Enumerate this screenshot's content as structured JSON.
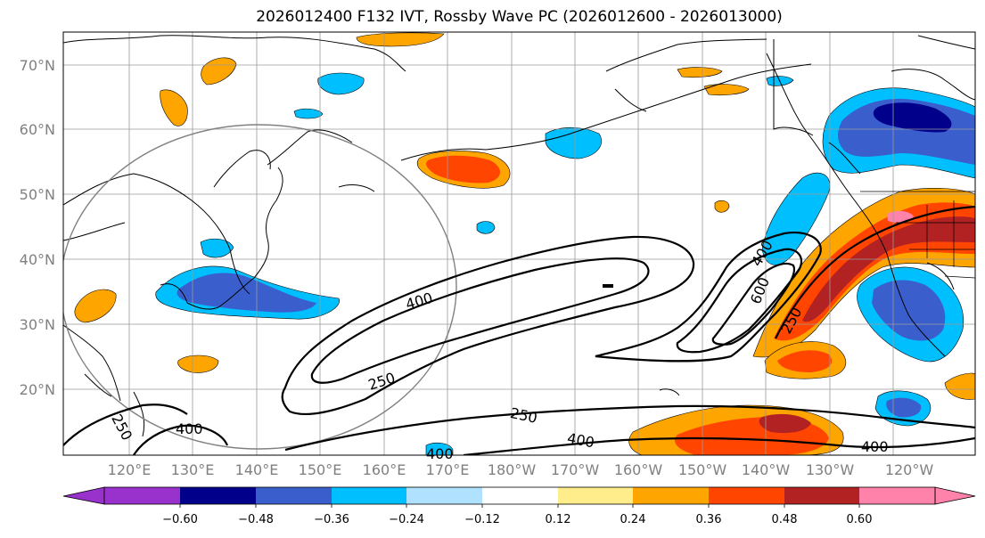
{
  "title": "2026012400 F132 IVT, Rossby Wave PC (2026012600 - 2026013000)",
  "latitude_labels": [
    "70°N",
    "60°N",
    "50°N",
    "40°N",
    "30°N",
    "20°N"
  ],
  "longitude_labels": [
    "120°E",
    "130°E",
    "140°E",
    "150°E",
    "160°E",
    "170°E",
    "180°W",
    "170°W",
    "160°W",
    "150°W",
    "140°W",
    "130°W",
    "120°W"
  ],
  "contour_labels": [
    "400",
    "600",
    "400",
    "250",
    "250",
    "250",
    "400",
    "400",
    "250",
    "400",
    "400"
  ],
  "colorbar": {
    "ticks": [
      "−0.60",
      "−0.48",
      "−0.36",
      "−0.24",
      "−0.12",
      "0.12",
      "0.24",
      "0.36",
      "0.48",
      "0.60"
    ],
    "colors": [
      "#9932CC",
      "#00008B",
      "#3A5FCD",
      "#00BFFF",
      "#B0E2FF",
      "#FFFFFF",
      "#FFEC8B",
      "#FFA500",
      "#FF4500",
      "#B22222",
      "#FF82AB"
    ]
  }
}
